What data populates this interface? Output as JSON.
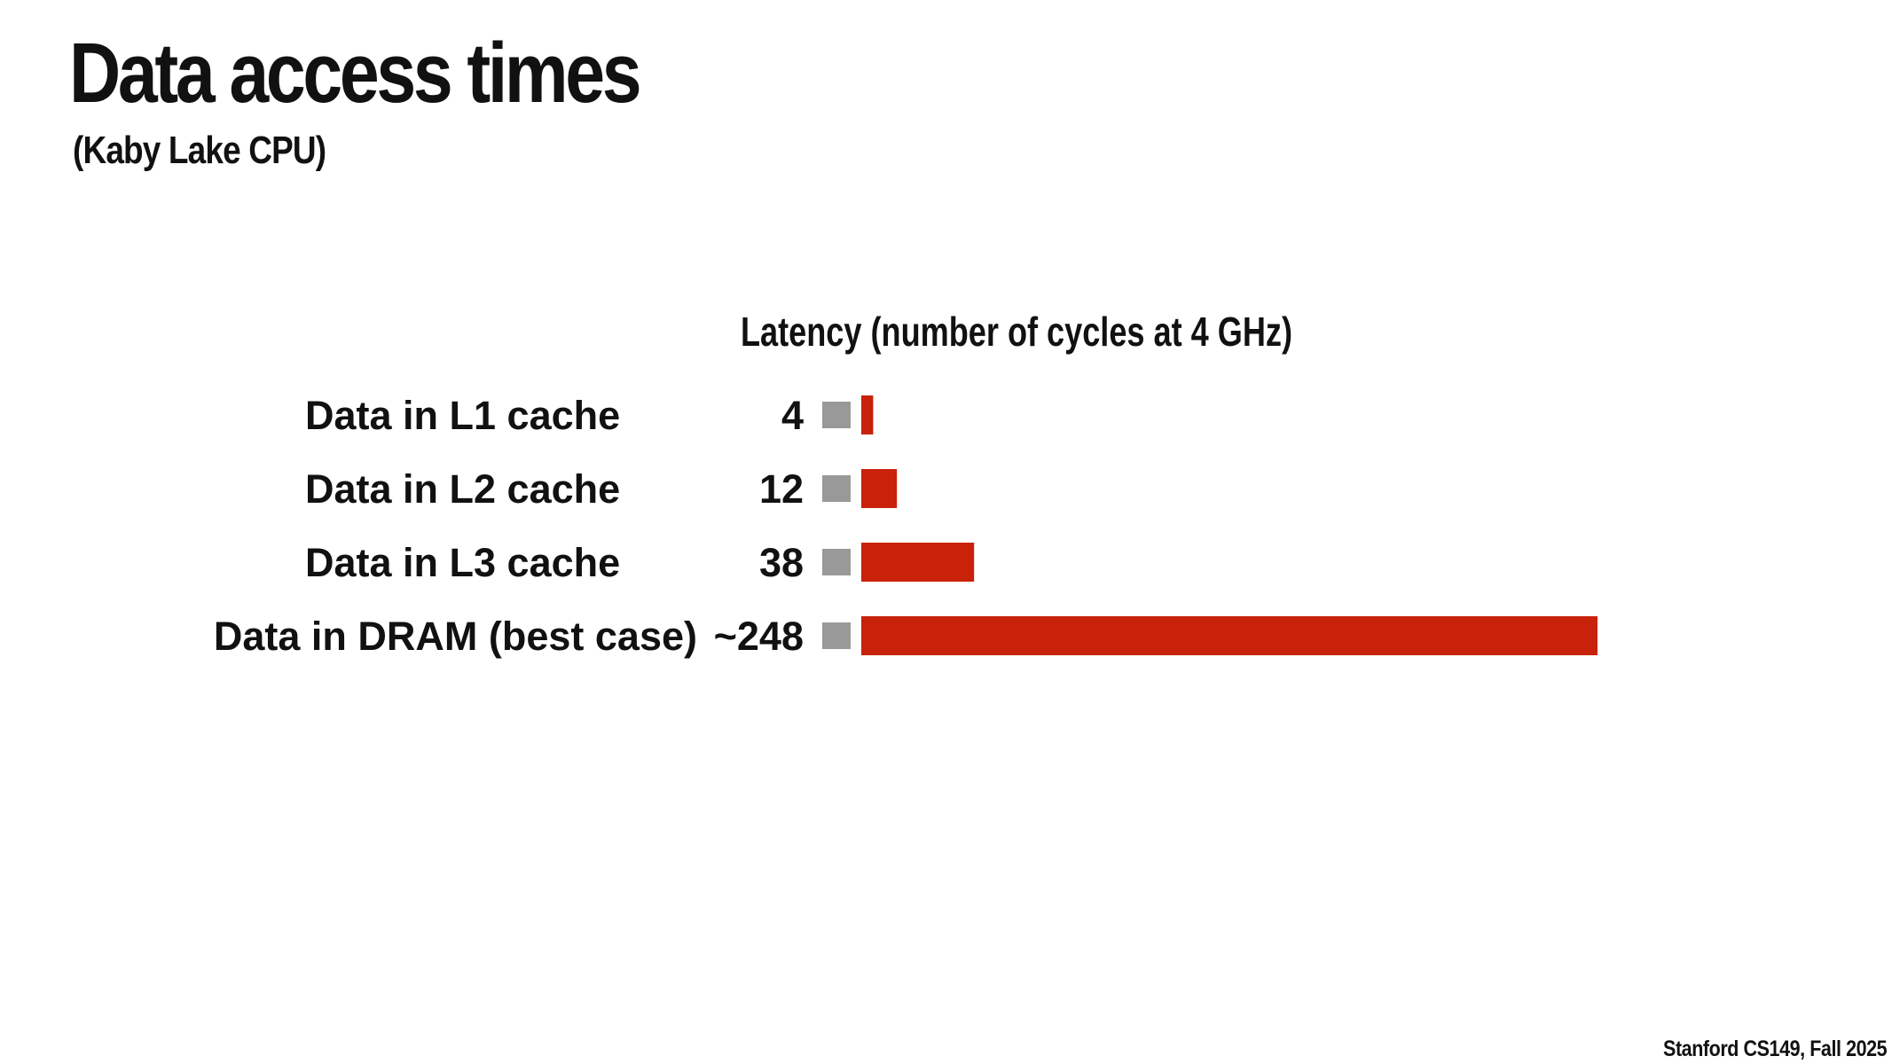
{
  "slide": {
    "title": "Data access times",
    "subtitle": "(Kaby Lake CPU)",
    "footer": "Stanford CS149, Fall 2025"
  },
  "colors": {
    "bar": "#c8220a",
    "marker": "#999999",
    "text": "#111111"
  },
  "chart_data": {
    "type": "bar",
    "orientation": "horizontal",
    "title": "Latency (number of cycles at 4 GHz)",
    "categories": [
      "Data in L1 cache",
      "Data in L2 cache",
      "Data in L3 cache",
      "Data in DRAM (best case)"
    ],
    "value_labels": [
      "4",
      "12",
      "38",
      "~248"
    ],
    "values": [
      4,
      12,
      38,
      248
    ],
    "xlim": [
      0,
      248
    ],
    "grid": false,
    "legend": "none"
  }
}
